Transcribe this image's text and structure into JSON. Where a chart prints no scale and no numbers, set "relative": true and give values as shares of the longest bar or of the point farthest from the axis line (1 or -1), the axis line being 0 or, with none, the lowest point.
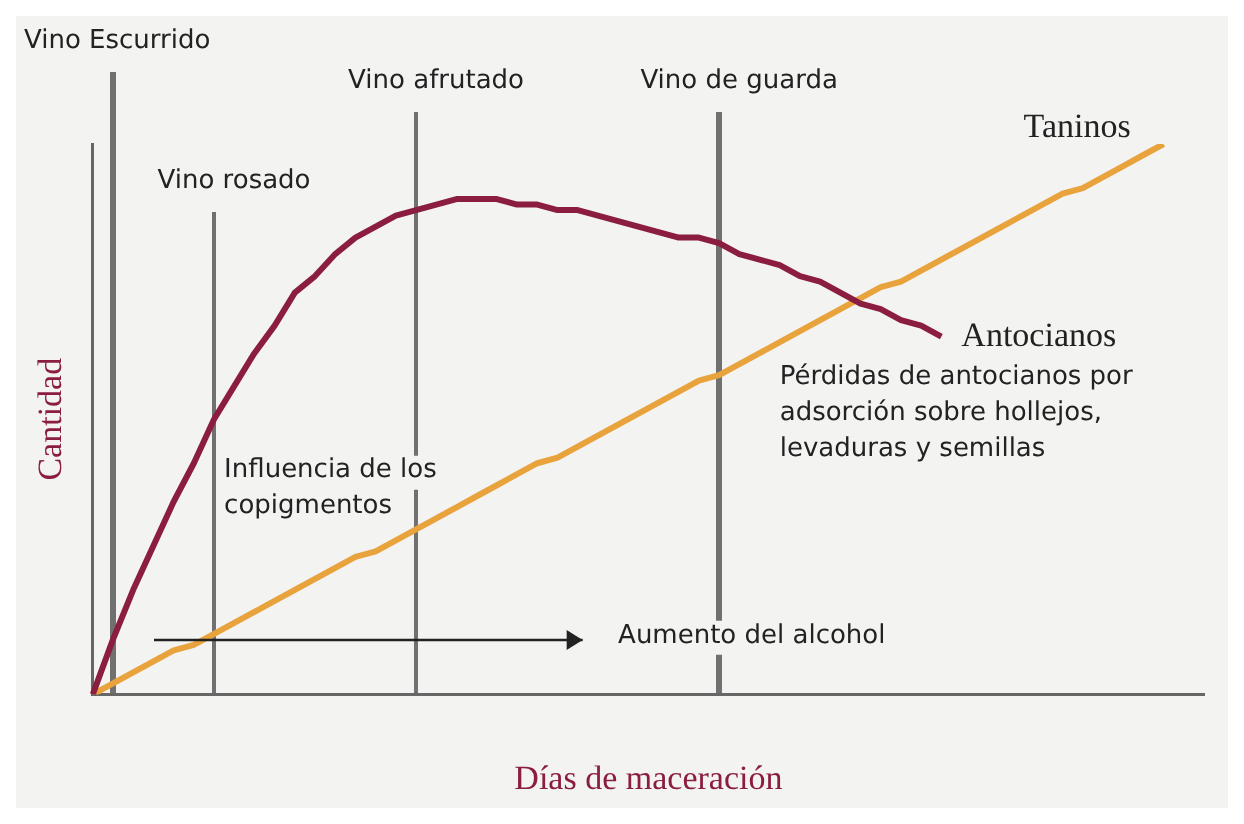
{
  "chart_data": {
    "type": "line",
    "relative": true,
    "xlabel": "Días de maceración",
    "ylabel": "Cantidad",
    "categories": [
      null,
      null,
      null,
      null,
      null,
      null,
      null,
      null,
      null,
      null,
      null,
      null,
      null,
      null,
      null,
      null,
      null,
      null,
      null,
      null,
      null,
      null,
      null,
      null,
      null,
      null,
      null,
      null,
      null,
      null,
      null,
      null,
      null,
      null,
      null,
      null,
      null,
      null,
      null,
      null,
      null,
      null,
      null,
      null,
      null,
      null,
      null,
      null,
      null,
      null,
      null,
      null,
      null,
      null,
      null,
      null
    ],
    "series": [
      {
        "name": "Antocianos",
        "color": "#8b1e3f",
        "values": [
          0,
          0.1,
          0.19,
          0.27,
          0.35,
          0.42,
          0.5,
          0.56,
          0.62,
          0.67,
          0.73,
          0.76,
          0.8,
          0.83,
          0.85,
          0.87,
          0.88,
          0.89,
          0.9,
          0.9,
          0.9,
          0.89,
          0.89,
          0.88,
          0.88,
          0.87,
          0.86,
          0.85,
          0.84,
          0.83,
          0.83,
          0.82,
          0.8,
          0.79,
          0.78,
          0.76,
          0.75,
          0.73,
          0.71,
          0.7,
          0.68,
          0.67,
          0.65,
          null,
          null,
          null,
          null,
          null,
          null,
          null,
          null,
          null,
          null,
          null,
          null,
          null
        ]
      },
      {
        "name": "Taninos",
        "color": "#e8a33d",
        "values": [
          0,
          0.02,
          0.04,
          0.06,
          0.08,
          0.09,
          0.11,
          0.13,
          0.15,
          0.17,
          0.19,
          0.21,
          0.23,
          0.25,
          0.26,
          0.28,
          0.3,
          0.32,
          0.34,
          0.36,
          0.38,
          0.4,
          0.42,
          0.43,
          0.45,
          0.47,
          0.49,
          0.51,
          0.53,
          0.55,
          0.57,
          0.58,
          0.6,
          0.62,
          0.64,
          0.66,
          0.68,
          0.7,
          0.72,
          0.74,
          0.75,
          0.77,
          0.79,
          0.81,
          0.83,
          0.85,
          0.87,
          0.89,
          0.91,
          0.92,
          0.94,
          0.96,
          0.98,
          1,
          null,
          null
        ]
      }
    ],
    "annotations": [
      "Influencia de los copigmentos",
      "Pérdidas de antocianos por adsorción sobre hollejos, levaduras y semillas",
      "Aumento del alcohol",
      "Vino Escurrido",
      "Vino rosado",
      "Vino afrutado",
      "Vino de guarda"
    ],
    "grid": false,
    "legend": false,
    "marker": "none",
    "line_style": "solid"
  }
}
